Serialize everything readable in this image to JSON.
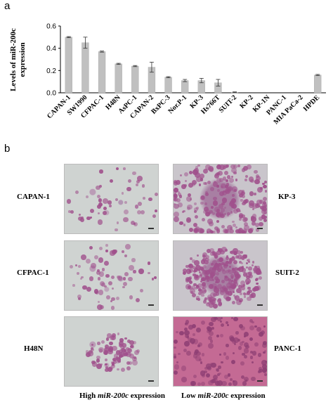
{
  "panel_a_label": "a",
  "panel_b_label": "b",
  "chart_data": {
    "type": "bar",
    "ylabel_line1": "Levels of miR-200c",
    "ylabel_line2": "expression",
    "ylim": [
      0,
      0.6
    ],
    "yticks": [
      "0.0",
      "0.2",
      "0.4",
      "0.6"
    ],
    "grid": false,
    "categories": [
      "CAPAN-1",
      "SW1990",
      "CFPAC-1",
      "H48N",
      "AsPC-1",
      "CAPAN-2",
      "BxPC-3",
      "Nor.P-1",
      "KP-3",
      "Hs766T",
      "SUIT-2",
      "KP-2",
      "KP-1N",
      "PANC-1",
      "MIA PaCa-2",
      "HPDE"
    ],
    "values": [
      0.5,
      0.45,
      0.37,
      0.26,
      0.24,
      0.23,
      0.14,
      0.11,
      0.11,
      0.09,
      0.005,
      0.0,
      0.0,
      0.0,
      0.0,
      0.16
    ],
    "errors": [
      0.005,
      0.05,
      0.005,
      0.005,
      0.005,
      0.045,
      0.005,
      0.01,
      0.02,
      0.03,
      0.003,
      0.0,
      0.0,
      0.0,
      0.0,
      0.005
    ],
    "bar_color": "#c0c0c0"
  },
  "micrographs": {
    "left_labels": [
      "CAPAN-1",
      "CFPAC-1",
      "H48N"
    ],
    "right_labels": [
      "KP-3",
      "SUIT-2",
      "PANC-1"
    ],
    "caption_high_pre": "High ",
    "caption_high_italic": "miR-200c",
    "caption_high_post": " expression",
    "caption_low_pre": "Low ",
    "caption_low_italic": "miR-200c",
    "caption_low_post": " expression",
    "stain_color": "#a0508c"
  }
}
